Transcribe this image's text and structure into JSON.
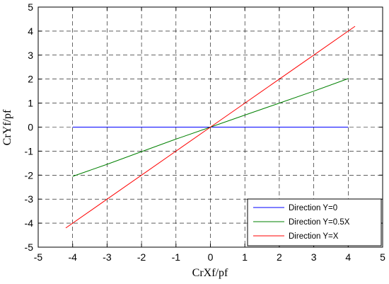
{
  "chart_data": {
    "type": "line",
    "title": "",
    "xlabel": "CrXf/pf",
    "ylabel": "CrYf/pf",
    "xlim": [
      -5,
      5
    ],
    "ylim": [
      -5,
      5
    ],
    "xticks": [
      -5,
      -4,
      -3,
      -2,
      -1,
      0,
      1,
      2,
      3,
      4,
      5
    ],
    "yticks": [
      -5,
      -4,
      -3,
      -2,
      -1,
      0,
      1,
      2,
      3,
      4,
      5
    ],
    "grid": true,
    "legend_position": "bottom-right",
    "series": [
      {
        "name": "Direction Y=0",
        "color": "#0000ff",
        "x": [
          -4,
          -3,
          -2,
          -1,
          0,
          1,
          2,
          3,
          4
        ],
        "y": [
          0,
          0,
          0,
          0,
          0,
          0,
          0,
          0,
          0
        ]
      },
      {
        "name": "Direction Y=0.5X",
        "color": "#008000",
        "x": [
          -4,
          -3,
          -2,
          -1,
          0,
          1,
          2,
          3,
          4
        ],
        "y": [
          -2.05,
          -1.55,
          -1.02,
          -0.5,
          0,
          0.5,
          1.0,
          1.5,
          2.02
        ]
      },
      {
        "name": "Direction Y=X",
        "color": "#ff0000",
        "x": [
          -4.2,
          -3,
          -2,
          -1,
          0,
          1,
          2,
          3,
          4.2
        ],
        "y": [
          -4.2,
          -3,
          -2,
          -1,
          0,
          1,
          2,
          3,
          4.2
        ]
      }
    ]
  }
}
